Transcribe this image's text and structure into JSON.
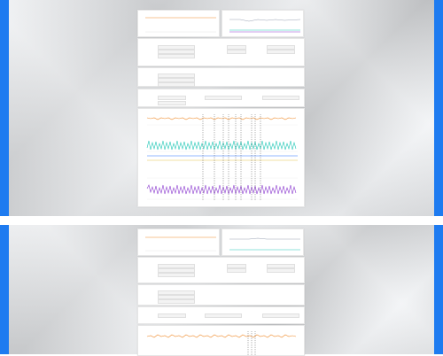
{
  "colors": {
    "frame_blue": "#1e7bf0",
    "series_orange": "#f08c2e",
    "series_teal": "#25c8b7",
    "series_purple": "#8e3fd0",
    "series_blue": "#2d73ff",
    "series_yellow": "#e5c24c",
    "series_gray": "#9aa3b4"
  },
  "icons": {
    "download": "download-icon"
  },
  "panes": [
    {
      "cards": {
        "top_left_title": "",
        "top_right_title": "",
        "info_title": "",
        "config_title": "",
        "params_title": "",
        "chart_title": "",
        "link_label": ""
      }
    },
    {
      "cards": {
        "top_left_title": "",
        "top_right_title": "",
        "info_title": "",
        "config_title": "",
        "params_title": "",
        "chart_title": "",
        "link_label": ""
      }
    }
  ]
}
